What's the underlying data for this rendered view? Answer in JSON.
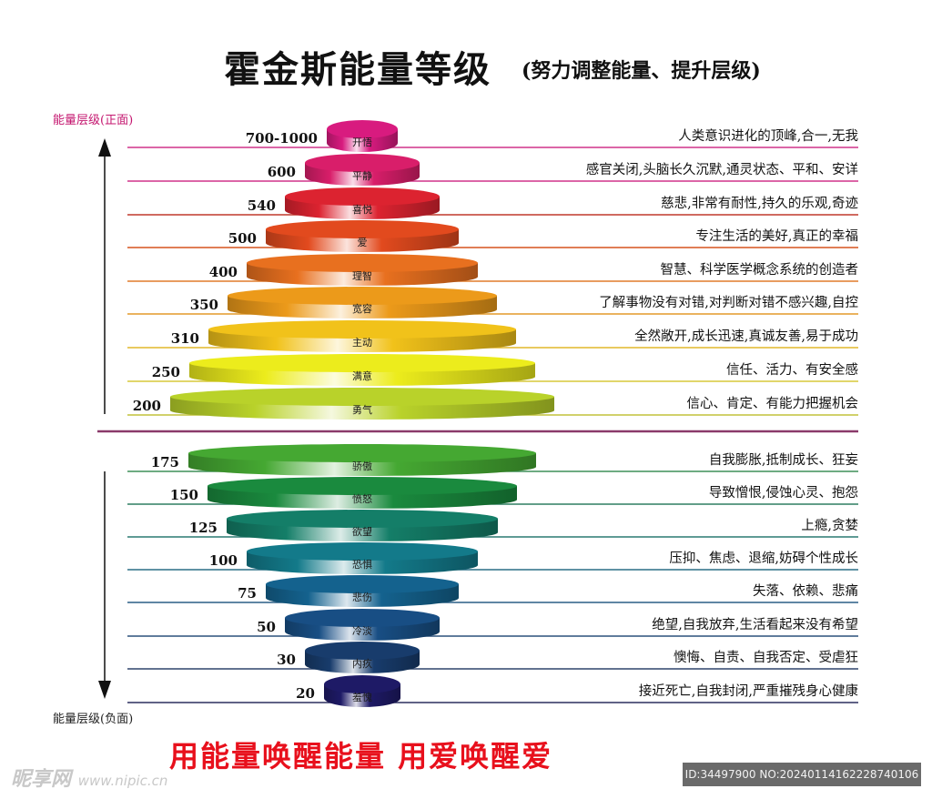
{
  "title": "霍金斯能量等级",
  "subtitle": "(努力调整能量、提升层级)",
  "positive_axis_label": "能量层级(正面)",
  "negative_axis_label": "能量层级(负面)",
  "slogan": "用能量唤醒能量 用爱唤醒爱",
  "watermark": {
    "site_name": "昵享网",
    "site_url": "www.nipic.cn",
    "id_text": "ID:34497900 NO:20240114162228740106"
  },
  "positive_levels": [
    {
      "value": "700-1000",
      "name": "开悟",
      "description": "人类意识进化的顶峰,合一,无我",
      "color": "#d81b7f",
      "line_color": "#d0348a"
    },
    {
      "value": "600",
      "name": "平静",
      "description": "感官关闭,头脑长久沉默,通灵状态、平和、安详",
      "color": "#d91e6a",
      "line_color": "#d0348a"
    },
    {
      "value": "540",
      "name": "喜悦",
      "description": "慈悲,非常有耐性,持久的乐观,奇迹",
      "color": "#dc2330",
      "line_color": "#c0392b"
    },
    {
      "value": "500",
      "name": "爱",
      "description": "专注生活的美好,真正的幸福",
      "color": "#e24a1e",
      "line_color": "#d5531f"
    },
    {
      "value": "400",
      "name": "理智",
      "description": "智慧、科学医学概念系统的创造者",
      "color": "#e8701f",
      "line_color": "#e07b2a"
    },
    {
      "value": "350",
      "name": "宽容",
      "description": "了解事物没有对错,对判断对错不感兴趣,自控",
      "color": "#ec9a1a",
      "line_color": "#e39a2a"
    },
    {
      "value": "310",
      "name": "主动",
      "description": "全然敞开,成长迅速,真诚友善,易于成功",
      "color": "#f1c21a",
      "line_color": "#e2b72a"
    },
    {
      "value": "250",
      "name": "满意",
      "description": "信任、活力、有安全感",
      "color": "#ecec1c",
      "line_color": "#d7c93a"
    },
    {
      "value": "200",
      "name": "勇气",
      "description": "信心、肯定、有能力把握机会",
      "color": "#b9d22a",
      "line_color": "#c2c23a"
    }
  ],
  "negative_levels": [
    {
      "value": "175",
      "name": "骄傲",
      "description": "自我膨胀,抵制成长、狂妄",
      "color": "#45a832",
      "line_color": "#3f8f58"
    },
    {
      "value": "150",
      "name": "愤怒",
      "description": "导致憎恨,侵蚀心灵、抱怨",
      "color": "#1a8a3e",
      "line_color": "#2f7f60"
    },
    {
      "value": "125",
      "name": "欲望",
      "description": "上瘾,贪婪",
      "color": "#147e68",
      "line_color": "#2a7a72"
    },
    {
      "value": "100",
      "name": "恐惧",
      "description": "压抑、焦虑、退缩,妨碍个性成长",
      "color": "#137a8a",
      "line_color": "#2a6f86"
    },
    {
      "value": "75",
      "name": "悲伤",
      "description": "失落、依赖、悲痛",
      "color": "#14628e",
      "line_color": "#2a5f86"
    },
    {
      "value": "50",
      "name": "冷淡",
      "description": "绝望,自我放弃,生活看起来没有希望",
      "color": "#184e84",
      "line_color": "#2c507c"
    },
    {
      "value": "30",
      "name": "内疚",
      "description": "懊悔、自责、自我否定、受虐狂",
      "color": "#183c6c",
      "line_color": "#2e446c"
    },
    {
      "value": "20",
      "name": "羞愧",
      "description": "接近死亡,自我封闭,严重摧残身心健康",
      "color": "#1e1a66",
      "line_color": "#2c2f5e"
    }
  ]
}
